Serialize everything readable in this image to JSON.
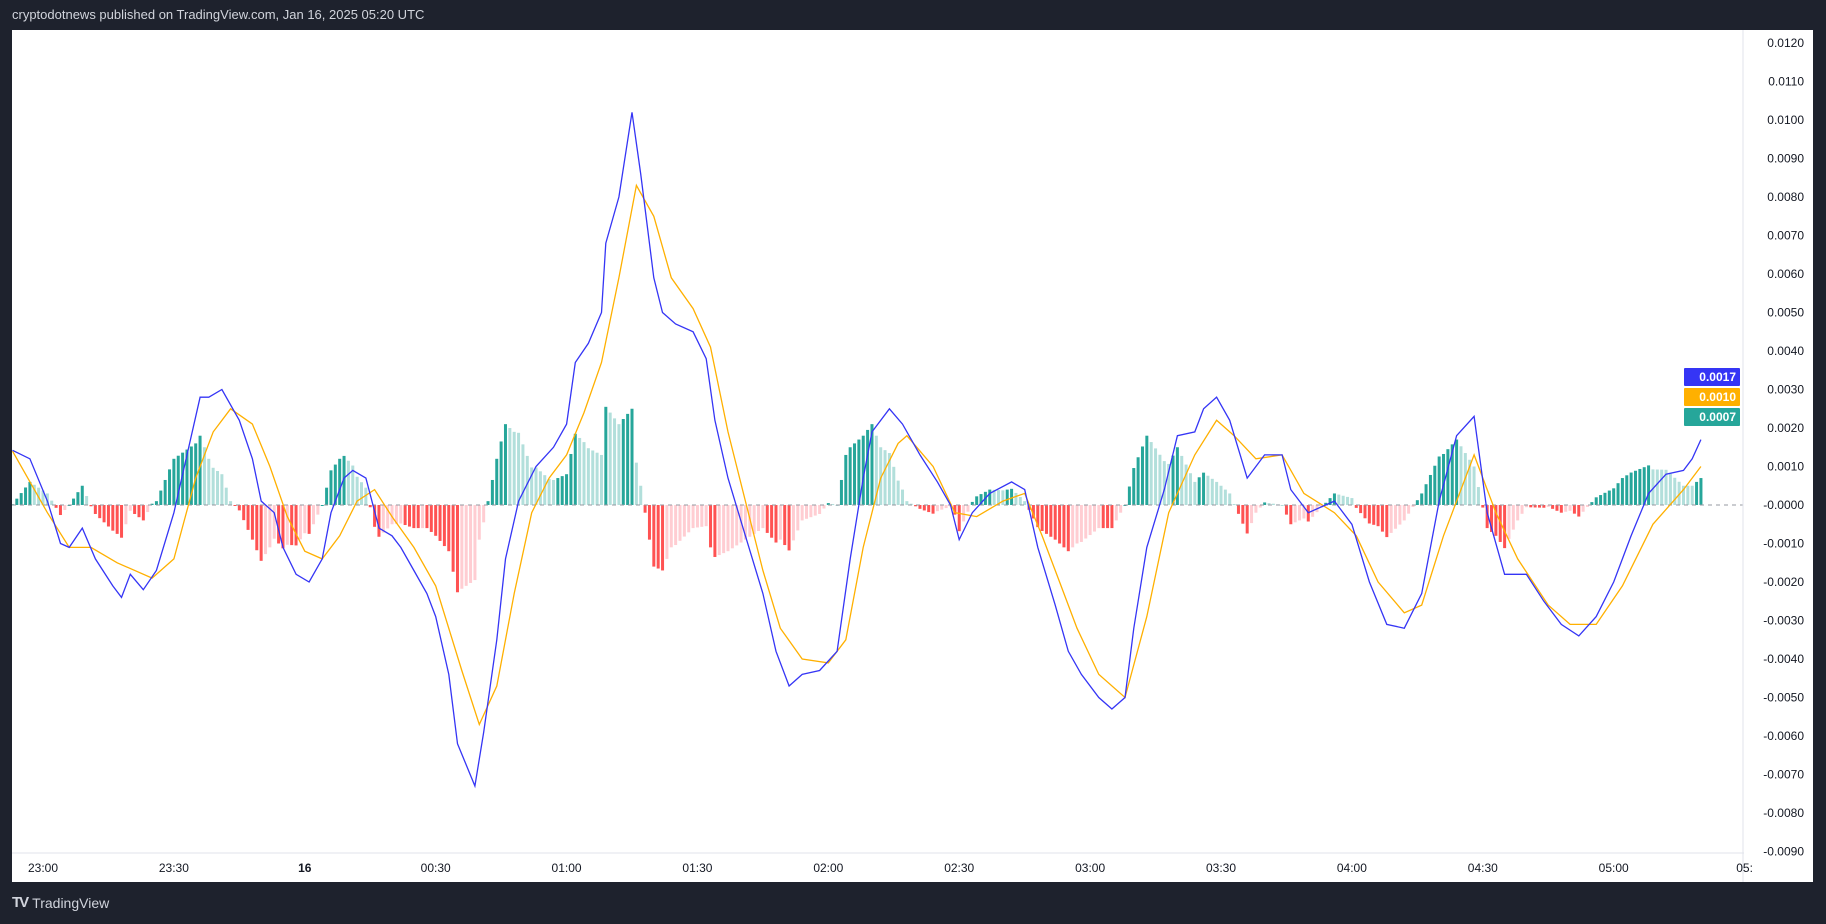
{
  "header": {
    "text": "cryptodotnews published on TradingView.com, Jan 16, 2025 05:20 UTC"
  },
  "footer": {
    "brand": "TradingView",
    "logo_icon": "tradingview-logo-icon"
  },
  "chart_data": {
    "type": "line",
    "title": "",
    "xlabel": "",
    "ylabel": "",
    "x_ticks": [
      "23:00",
      "23:30",
      "16",
      "00:30",
      "01:00",
      "01:30",
      "02:00",
      "02:30",
      "03:00",
      "03:30",
      "04:00",
      "04:30",
      "05:00",
      "05:"
    ],
    "y_ticks": [
      "0.0120",
      "0.0110",
      "0.0100",
      "0.0090",
      "0.0080",
      "0.0070",
      "0.0060",
      "0.0050",
      "0.0040",
      "0.0030",
      "0.0020",
      "0.0010",
      "-0.0000",
      "-0.0010",
      "-0.0020",
      "-0.0030",
      "-0.0040",
      "-0.0050",
      "-0.0060",
      "-0.0070",
      "-0.0080",
      "-0.0090"
    ],
    "ylim": [
      -0.009,
      0.012
    ],
    "xlim": [
      "22:53",
      "05:20"
    ],
    "grid": false,
    "colors": {
      "macd": "#3535f5",
      "signal": "#ffb000",
      "hist_pos_up": "#26a69a",
      "hist_pos_down": "#b2dfdb",
      "hist_neg_down": "#ff5252",
      "hist_neg_up": "#ffcdd2",
      "zero_line": "#9598a1"
    },
    "last_values": [
      {
        "label": "0.0017",
        "color": "#3535f5"
      },
      {
        "label": "0.0010",
        "color": "#ffb000"
      },
      {
        "label": "0.0007",
        "color": "#26a69a"
      }
    ],
    "series": [
      {
        "key": "macd",
        "points": [
          [
            "22:53",
            0.00142
          ],
          [
            "22:57",
            0.0012
          ],
          [
            "23:01",
            0.0001
          ],
          [
            "23:04",
            -0.001
          ],
          [
            "23:06",
            -0.0011
          ],
          [
            "23:09",
            -0.0006
          ],
          [
            "23:12",
            -0.0014
          ],
          [
            "23:16",
            -0.0021
          ],
          [
            "23:18",
            -0.0024
          ],
          [
            "23:20",
            -0.0018
          ],
          [
            "23:23",
            -0.0022
          ],
          [
            "23:26",
            -0.0017
          ],
          [
            "23:30",
            -0.0002
          ],
          [
            "23:33",
            0.0013
          ],
          [
            "23:36",
            0.0028
          ],
          [
            "23:38",
            0.0028
          ],
          [
            "23:41",
            0.003
          ],
          [
            "23:45",
            0.0022
          ],
          [
            "23:48",
            0.0012
          ],
          [
            "23:50",
            0.0001
          ],
          [
            "23:53",
            -0.0002
          ],
          [
            "23:55",
            -0.0011
          ],
          [
            "23:58",
            -0.0018
          ],
          [
            "00:01",
            -0.002
          ],
          [
            "00:04",
            -0.0014
          ],
          [
            "00:06",
            -0.0002
          ],
          [
            "00:09",
            0.0007
          ],
          [
            "00:11",
            0.0009
          ],
          [
            "00:14",
            0.0007
          ],
          [
            "00:17",
            -0.0006
          ],
          [
            "00:20",
            -0.0008
          ],
          [
            "00:22",
            -0.0011
          ],
          [
            "00:25",
            -0.0017
          ],
          [
            "00:28",
            -0.0023
          ],
          [
            "00:30",
            -0.0029
          ],
          [
            "00:33",
            -0.0044
          ],
          [
            "00:35",
            -0.0062
          ],
          [
            "00:39",
            -0.0073
          ],
          [
            "00:41",
            -0.0059
          ],
          [
            "00:44",
            -0.0035
          ],
          [
            "00:46",
            -0.0014
          ],
          [
            "00:49",
            0.0001
          ],
          [
            "00:53",
            0.001
          ],
          [
            "00:57",
            0.0015
          ],
          [
            "01:00",
            0.0021
          ],
          [
            "01:02",
            0.0037
          ],
          [
            "01:05",
            0.0042
          ],
          [
            "01:08",
            0.005
          ],
          [
            "01:09",
            0.0068
          ],
          [
            "01:12",
            0.008
          ],
          [
            "01:15",
            0.0102
          ],
          [
            "01:17",
            0.0086
          ],
          [
            "01:20",
            0.0059
          ],
          [
            "01:22",
            0.005
          ],
          [
            "01:25",
            0.0047
          ],
          [
            "01:29",
            0.0045
          ],
          [
            "01:32",
            0.0038
          ],
          [
            "01:34",
            0.0022
          ],
          [
            "01:37",
            0.0007
          ],
          [
            "01:41",
            -0.0008
          ],
          [
            "01:45",
            -0.0023
          ],
          [
            "01:48",
            -0.0038
          ],
          [
            "01:51",
            -0.0047
          ],
          [
            "01:54",
            -0.0044
          ],
          [
            "01:58",
            -0.0043
          ],
          [
            "02:02",
            -0.0038
          ],
          [
            "02:05",
            -0.0014
          ],
          [
            "02:08",
            0.0007
          ],
          [
            "02:10",
            0.0019
          ],
          [
            "02:14",
            0.0025
          ],
          [
            "02:17",
            0.0021
          ],
          [
            "02:21",
            0.0013
          ],
          [
            "02:25",
            0.0006
          ],
          [
            "02:28",
            0.0
          ],
          [
            "02:30",
            -0.0009
          ],
          [
            "02:33",
            -0.0002
          ],
          [
            "02:37",
            0.0003
          ],
          [
            "02:42",
            0.0006
          ],
          [
            "02:45",
            0.0004
          ],
          [
            "02:48",
            -0.0011
          ],
          [
            "02:52",
            -0.0026
          ],
          [
            "02:55",
            -0.0038
          ],
          [
            "02:58",
            -0.0044
          ],
          [
            "03:02",
            -0.005
          ],
          [
            "03:05",
            -0.0053
          ],
          [
            "03:08",
            -0.005
          ],
          [
            "03:10",
            -0.0032
          ],
          [
            "03:13",
            -0.0011
          ],
          [
            "03:17",
            0.0004
          ],
          [
            "03:20",
            0.0018
          ],
          [
            "03:24",
            0.0019
          ],
          [
            "03:26",
            0.0025
          ],
          [
            "03:29",
            0.0028
          ],
          [
            "03:32",
            0.0022
          ],
          [
            "03:36",
            0.0007
          ],
          [
            "03:40",
            0.0013
          ],
          [
            "03:44",
            0.0013
          ],
          [
            "03:46",
            0.0004
          ],
          [
            "03:50",
            -0.0002
          ],
          [
            "03:56",
            0.0001
          ],
          [
            "04:00",
            -0.0005
          ],
          [
            "04:04",
            -0.002
          ],
          [
            "04:08",
            -0.0031
          ],
          [
            "04:12",
            -0.0032
          ],
          [
            "04:16",
            -0.0023
          ],
          [
            "04:20",
            0.0001
          ],
          [
            "04:24",
            0.0018
          ],
          [
            "04:28",
            0.0023
          ],
          [
            "04:31",
            -0.0002
          ],
          [
            "04:35",
            -0.0018
          ],
          [
            "04:40",
            -0.0018
          ],
          [
            "04:44",
            -0.0025
          ],
          [
            "04:48",
            -0.0031
          ],
          [
            "04:52",
            -0.0034
          ],
          [
            "04:56",
            -0.0029
          ],
          [
            "05:00",
            -0.002
          ],
          [
            "05:04",
            -0.0008
          ],
          [
            "05:08",
            0.0003
          ],
          [
            "05:12",
            0.0008
          ],
          [
            "05:16",
            0.0009
          ],
          [
            "05:18",
            0.0012
          ],
          [
            "05:20",
            0.0017
          ]
        ]
      },
      {
        "key": "signal",
        "points": [
          [
            "22:53",
            0.0014
          ],
          [
            "23:01",
            -0.0002
          ],
          [
            "23:06",
            -0.0011
          ],
          [
            "23:11",
            -0.0011
          ],
          [
            "23:17",
            -0.0015
          ],
          [
            "23:25",
            -0.0019
          ],
          [
            "23:30",
            -0.0014
          ],
          [
            "23:35",
            0.0007
          ],
          [
            "23:39",
            0.0019
          ],
          [
            "23:43",
            0.0025
          ],
          [
            "23:48",
            0.0021
          ],
          [
            "23:52",
            0.001
          ],
          [
            "23:56",
            -0.0003
          ],
          [
            "00:00",
            -0.0012
          ],
          [
            "00:04",
            -0.0014
          ],
          [
            "00:08",
            -0.0008
          ],
          [
            "00:12",
            0.0001
          ],
          [
            "00:16",
            0.0004
          ],
          [
            "00:20",
            -0.0003
          ],
          [
            "00:25",
            -0.0011
          ],
          [
            "00:30",
            -0.0021
          ],
          [
            "00:36",
            -0.0043
          ],
          [
            "00:40",
            -0.0057
          ],
          [
            "00:44",
            -0.0047
          ],
          [
            "00:48",
            -0.0023
          ],
          [
            "00:52",
            -0.0002
          ],
          [
            "00:56",
            0.0007
          ],
          [
            "01:00",
            0.0013
          ],
          [
            "01:04",
            0.0024
          ],
          [
            "01:08",
            0.0037
          ],
          [
            "01:12",
            0.0059
          ],
          [
            "01:16",
            0.0083
          ],
          [
            "01:20",
            0.0075
          ],
          [
            "01:24",
            0.0059
          ],
          [
            "01:29",
            0.0051
          ],
          [
            "01:33",
            0.0041
          ],
          [
            "01:37",
            0.0019
          ],
          [
            "01:41",
            0.0001
          ],
          [
            "01:45",
            -0.0017
          ],
          [
            "01:49",
            -0.0032
          ],
          [
            "01:54",
            -0.004
          ],
          [
            "02:00",
            -0.0041
          ],
          [
            "02:04",
            -0.0035
          ],
          [
            "02:08",
            -0.0011
          ],
          [
            "02:12",
            0.0007
          ],
          [
            "02:16",
            0.0016
          ],
          [
            "02:18",
            0.0018
          ],
          [
            "02:24",
            0.001
          ],
          [
            "02:29",
            -0.0002
          ],
          [
            "02:34",
            -0.0003
          ],
          [
            "02:40",
            0.0001
          ],
          [
            "02:45",
            0.0003
          ],
          [
            "02:49",
            -0.0008
          ],
          [
            "02:53",
            -0.002
          ],
          [
            "02:57",
            -0.0032
          ],
          [
            "03:02",
            -0.0044
          ],
          [
            "03:08",
            -0.005
          ],
          [
            "03:13",
            -0.0029
          ],
          [
            "03:18",
            -0.0002
          ],
          [
            "03:24",
            0.0013
          ],
          [
            "03:29",
            0.0022
          ],
          [
            "03:33",
            0.0018
          ],
          [
            "03:38",
            0.0012
          ],
          [
            "03:44",
            0.0013
          ],
          [
            "03:49",
            0.0003
          ],
          [
            "03:56",
            -0.0002
          ],
          [
            "04:01",
            -0.0008
          ],
          [
            "04:06",
            -0.002
          ],
          [
            "04:12",
            -0.0028
          ],
          [
            "04:16",
            -0.0026
          ],
          [
            "04:21",
            -0.0008
          ],
          [
            "04:28",
            0.0013
          ],
          [
            "04:33",
            -0.0002
          ],
          [
            "04:38",
            -0.0014
          ],
          [
            "04:45",
            -0.0026
          ],
          [
            "04:50",
            -0.0031
          ],
          [
            "04:56",
            -0.0031
          ],
          [
            "05:02",
            -0.0021
          ],
          [
            "05:09",
            -0.0005
          ],
          [
            "05:16",
            0.0004
          ],
          [
            "05:20",
            0.001
          ]
        ]
      }
    ]
  }
}
